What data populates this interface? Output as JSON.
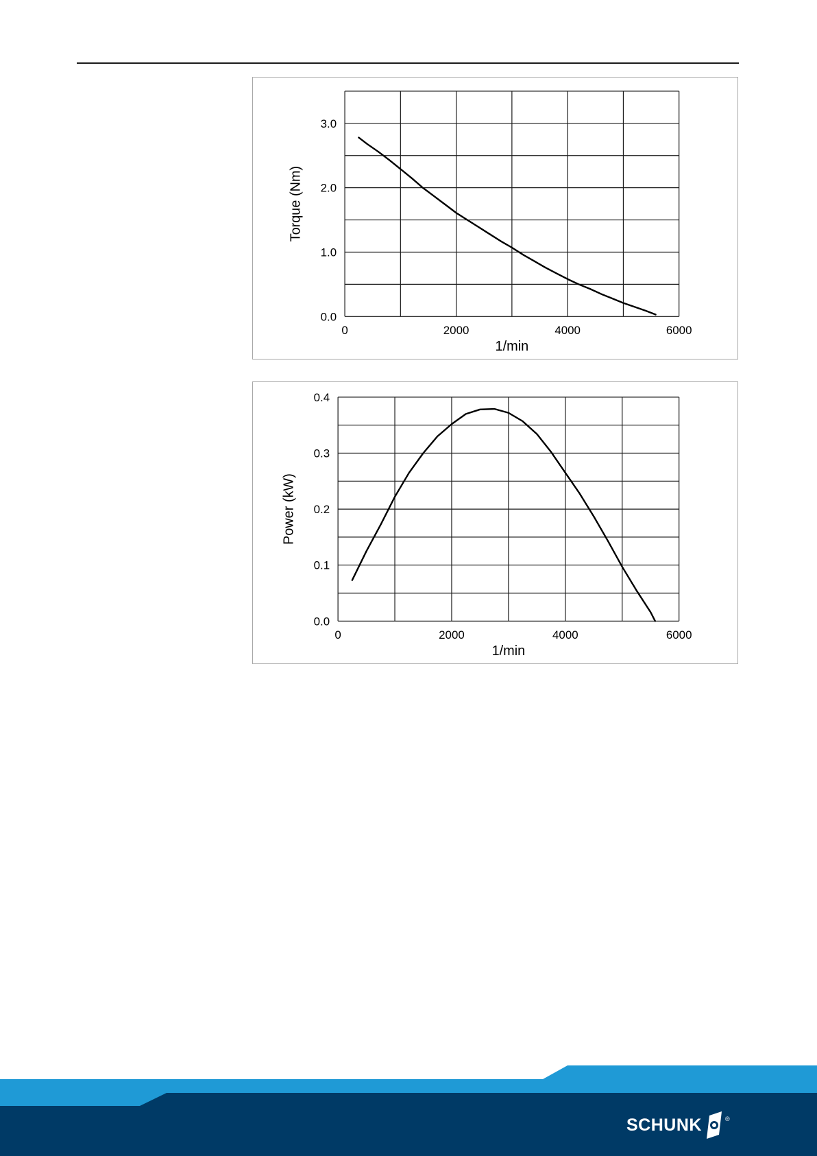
{
  "colors": {
    "curve": "#000000",
    "grid": "#1a1a1a",
    "frame_border": "#a8a8a8",
    "footer_light": "#1f9ad6",
    "footer_dark": "#003a66",
    "logo": "#ffffff"
  },
  "footer": {
    "brand": "SCHUNK",
    "registered_mark": "®",
    "logo_icon": "schunk-logo-icon"
  },
  "chart_data": [
    {
      "type": "line",
      "title": "",
      "xlabel": "1/min",
      "ylabel": "Torque (Nm)",
      "xlim": [
        0,
        6000
      ],
      "ylim": [
        0,
        3.5
      ],
      "x_ticks": [
        0,
        2000,
        4000,
        6000
      ],
      "x_tick_labels": [
        "0",
        "2000",
        "4000",
        "6000"
      ],
      "y_ticks": [
        0,
        1,
        2,
        3
      ],
      "y_tick_labels": [
        "0.0",
        "1.0",
        "2.0",
        "3.0"
      ],
      "x_gridlines": [
        0,
        1000,
        2000,
        3000,
        4000,
        5000,
        6000
      ],
      "y_gridlines": [
        0,
        0.5,
        1.0,
        1.5,
        2.0,
        2.5,
        3.0,
        3.5
      ],
      "grid": true,
      "legend": "none",
      "series": [
        {
          "x": [
            250,
            400,
            600,
            800,
            1000,
            1200,
            1400,
            1600,
            1800,
            2000,
            2200,
            2400,
            2600,
            2800,
            3000,
            3200,
            3400,
            3600,
            3800,
            4000,
            4200,
            4400,
            4600,
            4800,
            5000,
            5200,
            5400,
            5580
          ],
          "y": [
            2.78,
            2.68,
            2.56,
            2.43,
            2.29,
            2.15,
            2.0,
            1.87,
            1.74,
            1.61,
            1.5,
            1.39,
            1.28,
            1.17,
            1.07,
            0.96,
            0.86,
            0.76,
            0.67,
            0.58,
            0.5,
            0.43,
            0.35,
            0.28,
            0.21,
            0.15,
            0.09,
            0.03
          ]
        }
      ]
    },
    {
      "type": "line",
      "title": "",
      "xlabel": "1/min",
      "ylabel": "Power (kW)",
      "xlim": [
        0,
        6000
      ],
      "ylim": [
        0,
        0.4
      ],
      "x_ticks": [
        0,
        2000,
        4000,
        6000
      ],
      "x_tick_labels": [
        "0",
        "2000",
        "4000",
        "6000"
      ],
      "y_ticks": [
        0,
        0.1,
        0.2,
        0.3,
        0.4
      ],
      "y_tick_labels": [
        "0.0",
        "0.1",
        "0.2",
        "0.3",
        "0.4"
      ],
      "x_gridlines": [
        0,
        1000,
        2000,
        3000,
        4000,
        5000,
        6000
      ],
      "y_gridlines": [
        0,
        0.05,
        0.1,
        0.15,
        0.2,
        0.25,
        0.3,
        0.35,
        0.4
      ],
      "grid": true,
      "legend": "none",
      "series": [
        {
          "x": [
            250,
            500,
            750,
            1000,
            1250,
            1500,
            1750,
            2000,
            2250,
            2500,
            2750,
            3000,
            3250,
            3500,
            3750,
            4000,
            4250,
            4500,
            4750,
            5000,
            5250,
            5500,
            5580
          ],
          "y": [
            0.073,
            0.125,
            0.172,
            0.222,
            0.265,
            0.3,
            0.33,
            0.352,
            0.37,
            0.378,
            0.379,
            0.372,
            0.357,
            0.334,
            0.302,
            0.265,
            0.228,
            0.187,
            0.143,
            0.097,
            0.055,
            0.016,
            0.0
          ]
        }
      ]
    }
  ]
}
